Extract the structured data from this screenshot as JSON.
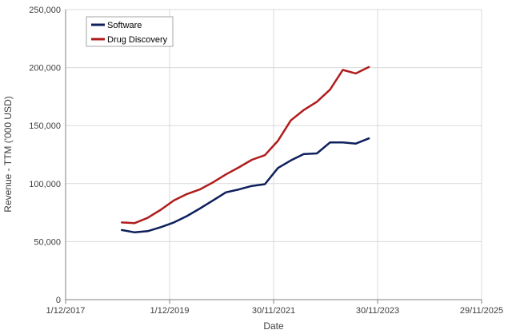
{
  "chart_data": {
    "type": "line",
    "title": "",
    "xlabel": "Date",
    "ylabel": "Revenue - TTM ('000 USD)",
    "x_axis_type": "date",
    "xlim": [
      "2017-12-01",
      "2025-11-29"
    ],
    "x_ticks": [
      "2017-12-01",
      "2019-12-01",
      "2021-11-30",
      "2023-11-30",
      "2025-11-29"
    ],
    "x_tick_labels": [
      "1/12/2017",
      "1/12/2019",
      "30/11/2021",
      "30/11/2023",
      "29/11/2025"
    ],
    "ylim": [
      0,
      250000
    ],
    "y_ticks": [
      0,
      50000,
      100000,
      150000,
      200000,
      250000
    ],
    "y_tick_labels": [
      "0",
      "50,000",
      "100,000",
      "150,000",
      "200,000",
      "250,000"
    ],
    "grid": {
      "horizontal": true,
      "vertical": true
    },
    "legend": {
      "placement": "top-left"
    },
    "series": [
      {
        "name": "Software",
        "color": "#0d1f5c",
        "points": [
          {
            "x": "2018-12-31",
            "y": 60000
          },
          {
            "x": "2019-03-31",
            "y": 58000
          },
          {
            "x": "2019-06-30",
            "y": 59000
          },
          {
            "x": "2019-09-30",
            "y": 62500
          },
          {
            "x": "2019-12-31",
            "y": 66500
          },
          {
            "x": "2020-03-31",
            "y": 72000
          },
          {
            "x": "2020-06-30",
            "y": 78500
          },
          {
            "x": "2020-09-30",
            "y": 85500
          },
          {
            "x": "2020-12-31",
            "y": 92500
          },
          {
            "x": "2021-03-31",
            "y": 95000
          },
          {
            "x": "2021-06-30",
            "y": 98000
          },
          {
            "x": "2021-09-30",
            "y": 99500
          },
          {
            "x": "2021-12-31",
            "y": 113500
          },
          {
            "x": "2022-03-31",
            "y": 120000
          },
          {
            "x": "2022-06-30",
            "y": 125500
          },
          {
            "x": "2022-09-30",
            "y": 126000
          },
          {
            "x": "2022-12-31",
            "y": 135500
          },
          {
            "x": "2023-03-31",
            "y": 135500
          },
          {
            "x": "2023-06-30",
            "y": 134500
          },
          {
            "x": "2023-09-30",
            "y": 139000
          }
        ]
      },
      {
        "name": "Drug Discovery",
        "color": "#b01c1c",
        "points": [
          {
            "x": "2018-12-31",
            "y": 66500
          },
          {
            "x": "2019-03-31",
            "y": 66000
          },
          {
            "x": "2019-06-30",
            "y": 70500
          },
          {
            "x": "2019-09-30",
            "y": 77500
          },
          {
            "x": "2019-12-31",
            "y": 85500
          },
          {
            "x": "2020-03-31",
            "y": 91000
          },
          {
            "x": "2020-06-30",
            "y": 95000
          },
          {
            "x": "2020-09-30",
            "y": 101000
          },
          {
            "x": "2020-12-31",
            "y": 108000
          },
          {
            "x": "2021-03-31",
            "y": 114000
          },
          {
            "x": "2021-06-30",
            "y": 120500
          },
          {
            "x": "2021-09-30",
            "y": 124500
          },
          {
            "x": "2021-12-31",
            "y": 137000
          },
          {
            "x": "2022-03-31",
            "y": 154500
          },
          {
            "x": "2022-06-30",
            "y": 163500
          },
          {
            "x": "2022-09-30",
            "y": 170500
          },
          {
            "x": "2022-12-31",
            "y": 181000
          },
          {
            "x": "2023-03-31",
            "y": 198000
          },
          {
            "x": "2023-06-30",
            "y": 195000
          },
          {
            "x": "2023-09-30",
            "y": 200500
          }
        ]
      }
    ]
  }
}
